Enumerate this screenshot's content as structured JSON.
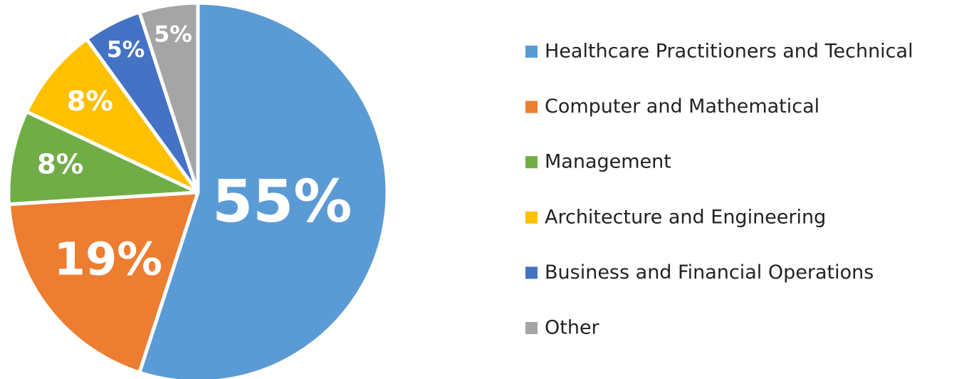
{
  "chart_data": {
    "type": "pie",
    "categories": [
      "Healthcare Practitioners and Technical",
      "Computer and Mathematical",
      "Management",
      "Architecture and Engineering",
      "Business and Financial Operations",
      "Other"
    ],
    "values": [
      55,
      19,
      8,
      8,
      5,
      5
    ],
    "value_labels": [
      "55%",
      "19%",
      "8%",
      "8%",
      "5%",
      "5%"
    ],
    "colors": [
      "#5b9bd5",
      "#ed7d31",
      "#70ad47",
      "#ffc000",
      "#4472c4",
      "#a5a5a5"
    ],
    "legend": "right"
  }
}
